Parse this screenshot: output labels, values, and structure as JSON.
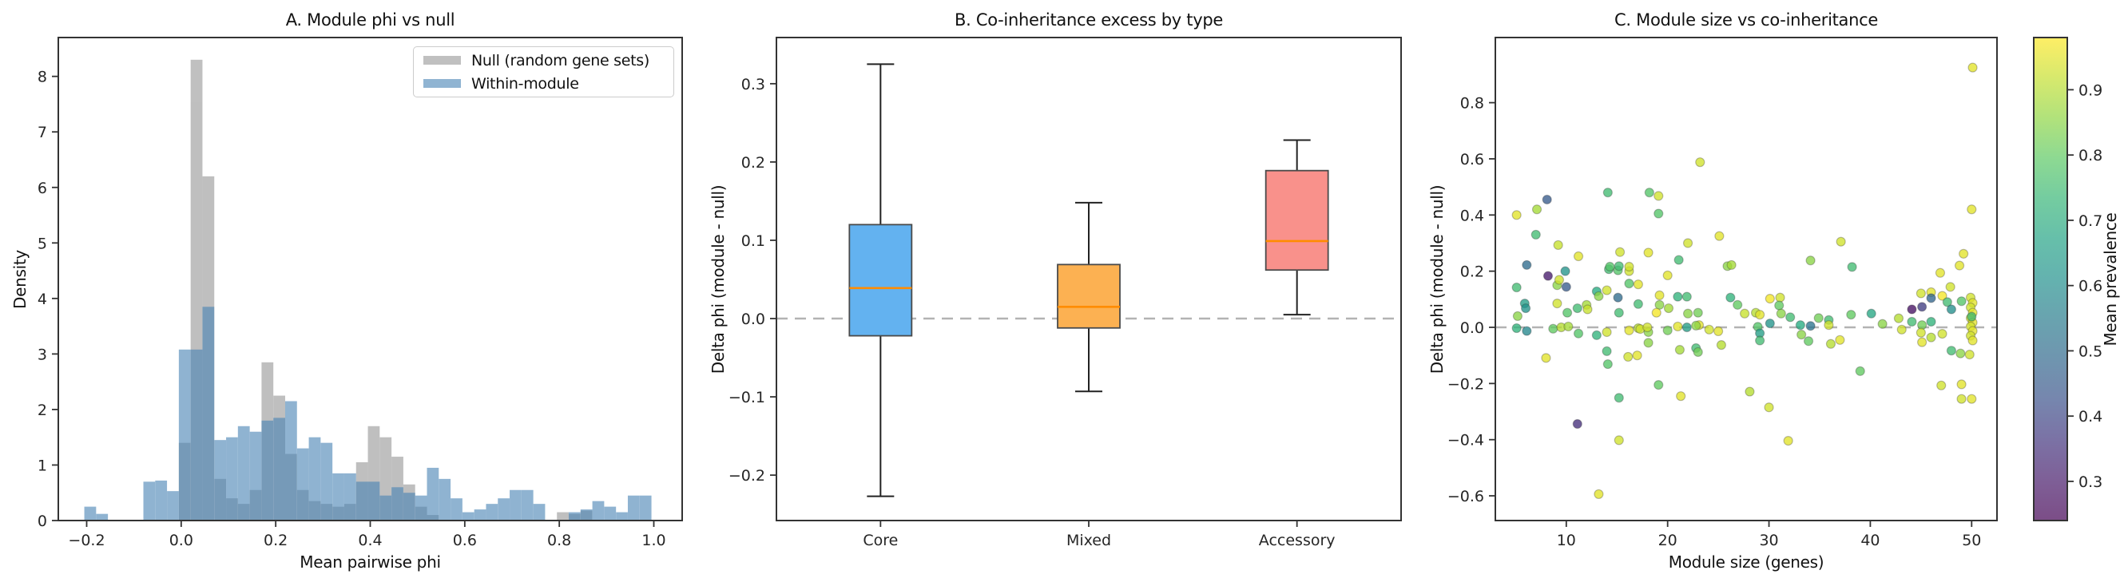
{
  "chart_data": [
    {
      "id": "A",
      "type": "histogram-overlay",
      "title": "A. Module phi vs null",
      "xlabel": "Mean pairwise phi",
      "ylabel": "Density",
      "xlim": [
        -0.26,
        1.06
      ],
      "ylim": [
        0,
        8.7
      ],
      "xticks": [
        -0.2,
        0.0,
        0.2,
        0.4,
        0.6,
        0.8,
        1.0
      ],
      "yticks": [
        0,
        1,
        2,
        3,
        4,
        5,
        6,
        7,
        8
      ],
      "bin_width": 0.025,
      "legend_position": "upper right",
      "series": [
        {
          "name": "Null (random gene sets)",
          "color": "#8c8c8c",
          "opacity": 0.55,
          "bars": [
            [
              -0.005,
              1.4
            ],
            [
              0.02,
              8.3
            ],
            [
              0.045,
              6.2
            ],
            [
              0.07,
              0.75
            ],
            [
              0.095,
              0.4
            ],
            [
              0.12,
              0.3
            ],
            [
              0.145,
              0.55
            ],
            [
              0.17,
              2.85
            ],
            [
              0.195,
              2.25
            ],
            [
              0.22,
              1.2
            ],
            [
              0.245,
              0.55
            ],
            [
              0.27,
              0.35
            ],
            [
              0.295,
              0.3
            ],
            [
              0.32,
              0.25
            ],
            [
              0.345,
              0.3
            ],
            [
              0.37,
              1.05
            ],
            [
              0.395,
              1.7
            ],
            [
              0.42,
              1.5
            ],
            [
              0.445,
              1.15
            ],
            [
              0.47,
              0.65
            ],
            [
              0.495,
              0.25
            ],
            [
              0.52,
              0.1
            ],
            [
              0.795,
              0.15
            ],
            [
              0.82,
              0.12
            ],
            [
              0.845,
              0.18
            ]
          ]
        },
        {
          "name": "Within-module",
          "color": "#4682b4",
          "opacity": 0.6,
          "bars": [
            [
              -0.205,
              0.25
            ],
            [
              -0.18,
              0.12
            ],
            [
              -0.08,
              0.7
            ],
            [
              -0.055,
              0.72
            ],
            [
              -0.03,
              0.53
            ],
            [
              -0.005,
              3.08
            ],
            [
              0.02,
              3.08
            ],
            [
              0.045,
              3.85
            ],
            [
              0.07,
              1.45
            ],
            [
              0.095,
              1.5
            ],
            [
              0.12,
              1.7
            ],
            [
              0.145,
              1.6
            ],
            [
              0.17,
              1.8
            ],
            [
              0.195,
              1.85
            ],
            [
              0.22,
              2.15
            ],
            [
              0.245,
              1.3
            ],
            [
              0.27,
              1.5
            ],
            [
              0.295,
              1.4
            ],
            [
              0.32,
              0.85
            ],
            [
              0.345,
              0.85
            ],
            [
              0.37,
              0.7
            ],
            [
              0.395,
              0.7
            ],
            [
              0.42,
              0.45
            ],
            [
              0.445,
              0.6
            ],
            [
              0.47,
              0.5
            ],
            [
              0.495,
              0.45
            ],
            [
              0.52,
              0.95
            ],
            [
              0.545,
              0.75
            ],
            [
              0.57,
              0.4
            ],
            [
              0.595,
              0.15
            ],
            [
              0.62,
              0.2
            ],
            [
              0.645,
              0.3
            ],
            [
              0.67,
              0.4
            ],
            [
              0.695,
              0.55
            ],
            [
              0.72,
              0.55
            ],
            [
              0.745,
              0.3
            ],
            [
              0.82,
              0.15
            ],
            [
              0.845,
              0.2
            ],
            [
              0.87,
              0.35
            ],
            [
              0.895,
              0.25
            ],
            [
              0.92,
              0.15
            ],
            [
              0.945,
              0.45
            ],
            [
              0.97,
              0.45
            ]
          ]
        }
      ]
    },
    {
      "id": "B",
      "type": "box",
      "title": "B. Co-inheritance excess by type",
      "ylabel": "Delta phi (module - null)",
      "categories": [
        "Core",
        "Mixed",
        "Accessory"
      ],
      "yticks": [
        -0.2,
        -0.1,
        0.0,
        0.1,
        0.2,
        0.3
      ],
      "ylim": [
        -0.258,
        0.359
      ],
      "zero_line": 0.0,
      "zero_line_color": "#b3b3b3",
      "median_color": "#ff8c00",
      "boxes": [
        {
          "label": "Core",
          "whislo": -0.227,
          "q1": -0.022,
          "med": 0.039,
          "q3": 0.12,
          "whishi": 0.325,
          "color": "#63b2f0"
        },
        {
          "label": "Mixed",
          "whislo": -0.093,
          "q1": -0.012,
          "med": 0.015,
          "q3": 0.069,
          "whishi": 0.148,
          "color": "#fcb152"
        },
        {
          "label": "Accessory",
          "whislo": 0.005,
          "q1": 0.062,
          "med": 0.099,
          "q3": 0.189,
          "whishi": 0.228,
          "color": "#f9918b"
        }
      ]
    },
    {
      "id": "C",
      "type": "scatter",
      "title": "C. Module size vs co-inheritance",
      "xlabel": "Module size (genes)",
      "ylabel": "Delta phi (module - null)",
      "xlim": [
        3.0,
        52.5
      ],
      "ylim": [
        -0.688,
        1.032
      ],
      "xticks": [
        10,
        20,
        30,
        40,
        50
      ],
      "yticks": [
        -0.6,
        -0.4,
        -0.2,
        0.0,
        0.2,
        0.4,
        0.6,
        0.8
      ],
      "zero_line": 0.0,
      "zero_line_color": "#b3b3b3",
      "colormap": "viridis",
      "marker_opacity": 0.78,
      "colorbar": {
        "label": "Mean prevalence",
        "ticks": [
          0.3,
          0.4,
          0.5,
          0.6,
          0.7,
          0.8,
          0.9
        ],
        "vmin": 0.24,
        "vmax": 0.98
      },
      "points": [
        [
          50.1,
          0.925,
          0.95
        ],
        [
          23.2,
          0.588,
          0.93
        ],
        [
          14.1,
          0.48,
          0.75
        ],
        [
          18.2,
          0.48,
          0.78
        ],
        [
          19.1,
          0.468,
          0.93
        ],
        [
          8.1,
          0.455,
          0.45
        ],
        [
          7.1,
          0.42,
          0.88
        ],
        [
          50.0,
          0.42,
          0.95
        ],
        [
          19.1,
          0.405,
          0.78
        ],
        [
          5.1,
          0.4,
          0.95
        ],
        [
          7.0,
          0.33,
          0.75
        ],
        [
          25.1,
          0.325,
          0.95
        ],
        [
          37.1,
          0.305,
          0.93
        ],
        [
          22.0,
          0.3,
          0.93
        ],
        [
          9.2,
          0.293,
          0.92
        ],
        [
          15.3,
          0.268,
          0.93
        ],
        [
          18.1,
          0.266,
          0.95
        ],
        [
          49.2,
          0.262,
          0.95
        ],
        [
          11.2,
          0.253,
          0.95
        ],
        [
          21.1,
          0.24,
          0.75
        ],
        [
          34.1,
          0.238,
          0.85
        ],
        [
          6.1,
          0.222,
          0.5
        ],
        [
          25.9,
          0.218,
          0.85
        ],
        [
          26.3,
          0.222,
          0.88
        ],
        [
          38.2,
          0.215,
          0.75
        ],
        [
          48.8,
          0.22,
          0.95
        ],
        [
          16.2,
          0.2,
          0.93
        ],
        [
          14.2,
          0.207,
          0.75
        ],
        [
          15.1,
          0.203,
          0.78
        ],
        [
          9.9,
          0.2,
          0.62
        ],
        [
          8.2,
          0.183,
          0.3
        ],
        [
          46.9,
          0.194,
          0.95
        ],
        [
          14.3,
          0.216,
          0.78
        ],
        [
          15.2,
          0.218,
          0.75
        ],
        [
          16.2,
          0.216,
          0.93
        ],
        [
          5.1,
          0.142,
          0.75
        ],
        [
          9.1,
          0.15,
          0.85
        ],
        [
          9.3,
          0.169,
          0.93
        ],
        [
          10.0,
          0.144,
          0.45
        ],
        [
          13.0,
          0.128,
          0.7
        ],
        [
          13.2,
          0.111,
          0.85
        ],
        [
          14.0,
          0.132,
          0.93
        ],
        [
          15.1,
          0.106,
          0.5
        ],
        [
          16.2,
          0.156,
          0.78
        ],
        [
          17.1,
          0.153,
          0.95
        ],
        [
          12.0,
          0.08,
          0.88
        ],
        [
          12.1,
          0.064,
          0.92
        ],
        [
          5.9,
          0.085,
          0.65
        ],
        [
          6.0,
          0.068,
          0.62
        ],
        [
          9.1,
          0.085,
          0.93
        ],
        [
          11.1,
          0.068,
          0.75
        ],
        [
          19.2,
          0.114,
          0.95
        ],
        [
          19.2,
          0.08,
          0.85
        ],
        [
          20.0,
          0.185,
          0.95
        ],
        [
          20.1,
          0.068,
          0.88
        ],
        [
          21.0,
          0.109,
          0.72
        ],
        [
          21.9,
          0.109,
          0.75
        ],
        [
          17.1,
          0.083,
          0.75
        ],
        [
          30.1,
          0.102,
          0.97
        ],
        [
          31.1,
          0.106,
          0.93
        ],
        [
          31.0,
          0.078,
          0.8
        ],
        [
          26.2,
          0.106,
          0.72
        ],
        [
          26.9,
          0.08,
          0.8
        ],
        [
          45.0,
          0.121,
          0.93
        ],
        [
          46.0,
          0.125,
          0.95
        ],
        [
          46.0,
          0.104,
          0.48
        ],
        [
          44.1,
          0.064,
          0.28
        ],
        [
          45.1,
          0.073,
          0.38
        ],
        [
          47.1,
          0.112,
          0.97
        ],
        [
          47.9,
          0.144,
          0.93
        ],
        [
          47.6,
          0.09,
          0.75
        ],
        [
          49.0,
          0.093,
          0.78
        ],
        [
          48.0,
          0.064,
          0.6
        ],
        [
          5.2,
          0.04,
          0.85
        ],
        [
          10.1,
          0.052,
          0.78
        ],
        [
          15.2,
          0.052,
          0.75
        ],
        [
          18.9,
          0.052,
          0.97
        ],
        [
          22.0,
          0.049,
          0.85
        ],
        [
          23.0,
          0.052,
          0.82
        ],
        [
          23.1,
          0.008,
          0.95
        ],
        [
          27.6,
          0.049,
          0.92
        ],
        [
          28.7,
          0.052,
          0.9
        ],
        [
          29.1,
          0.045,
          0.95
        ],
        [
          31.2,
          0.049,
          0.85
        ],
        [
          32.1,
          0.036,
          0.75
        ],
        [
          34.9,
          0.033,
          0.82
        ],
        [
          35.9,
          0.026,
          0.75
        ],
        [
          35.9,
          0.008,
          0.93
        ],
        [
          33.1,
          0.008,
          0.7
        ],
        [
          34.1,
          0.005,
          0.52
        ],
        [
          30.1,
          0.014,
          0.62
        ],
        [
          28.9,
          0.002,
          0.78
        ],
        [
          5.1,
          -0.003,
          0.72
        ],
        [
          6.1,
          -0.013,
          0.58
        ],
        [
          8.7,
          -0.005,
          0.8
        ],
        [
          9.5,
          0.0,
          0.9
        ],
        [
          10.2,
          0.003,
          0.88
        ],
        [
          11.2,
          -0.022,
          0.78
        ],
        [
          13.0,
          -0.028,
          0.72
        ],
        [
          14.0,
          -0.017,
          0.93
        ],
        [
          16.2,
          -0.011,
          0.95
        ],
        [
          17.1,
          -0.003,
          0.9
        ],
        [
          17.3,
          -0.006,
          0.93
        ],
        [
          18.1,
          -0.017,
          0.85
        ],
        [
          18.0,
          0.0,
          0.93
        ],
        [
          20.0,
          -0.011,
          0.82
        ],
        [
          21.0,
          0.003,
          0.95
        ],
        [
          21.9,
          0.0,
          0.65
        ],
        [
          22.8,
          0.006,
          0.85
        ],
        [
          24.1,
          -0.008,
          0.93
        ],
        [
          25.0,
          -0.014,
          0.95
        ],
        [
          29.1,
          -0.021,
          0.65
        ],
        [
          33.2,
          -0.026,
          0.85
        ],
        [
          40.1,
          0.049,
          0.68
        ],
        [
          41.2,
          0.012,
          0.85
        ],
        [
          42.8,
          0.032,
          0.9
        ],
        [
          43.1,
          -0.008,
          0.93
        ],
        [
          44.1,
          0.02,
          0.75
        ],
        [
          45.1,
          0.008,
          0.82
        ],
        [
          46.0,
          0.02,
          0.72
        ],
        [
          38.1,
          0.045,
          0.8
        ],
        [
          49.9,
          0.106,
          0.93
        ],
        [
          50.1,
          0.087,
          0.95
        ],
        [
          49.9,
          0.071,
          0.93
        ],
        [
          50.1,
          0.052,
          0.95
        ],
        [
          49.9,
          0.033,
          0.93
        ],
        [
          50.1,
          0.017,
          0.95
        ],
        [
          49.9,
          0.003,
          0.93
        ],
        [
          50.1,
          -0.013,
          0.95
        ],
        [
          49.9,
          -0.03,
          0.93
        ],
        [
          50.1,
          -0.047,
          0.95
        ],
        [
          50.0,
          0.038,
          0.75
        ],
        [
          29.1,
          -0.047,
          0.75
        ],
        [
          33.9,
          -0.049,
          0.8
        ],
        [
          36.1,
          -0.059,
          0.9
        ],
        [
          37.0,
          -0.045,
          0.95
        ],
        [
          45.0,
          -0.019,
          0.93
        ],
        [
          45.1,
          -0.053,
          0.95
        ],
        [
          46.0,
          -0.036,
          0.9
        ],
        [
          47.1,
          -0.023,
          0.93
        ],
        [
          48.0,
          -0.083,
          0.75
        ],
        [
          48.9,
          -0.093,
          0.85
        ],
        [
          49.8,
          -0.097,
          0.93
        ],
        [
          14.0,
          -0.085,
          0.75
        ],
        [
          14.1,
          -0.131,
          0.78
        ],
        [
          16.1,
          -0.105,
          0.93
        ],
        [
          17.0,
          -0.1,
          0.95
        ],
        [
          18.1,
          -0.055,
          0.85
        ],
        [
          21.2,
          -0.08,
          0.88
        ],
        [
          22.8,
          -0.074,
          0.75
        ],
        [
          23.0,
          -0.088,
          0.82
        ],
        [
          25.3,
          -0.063,
          0.9
        ],
        [
          8.0,
          -0.109,
          0.95
        ],
        [
          39.0,
          -0.156,
          0.8
        ],
        [
          19.1,
          -0.205,
          0.8
        ],
        [
          21.3,
          -0.245,
          0.95
        ],
        [
          15.2,
          -0.251,
          0.75
        ],
        [
          28.1,
          -0.229,
          0.9
        ],
        [
          30.0,
          -0.285,
          0.93
        ],
        [
          31.9,
          -0.404,
          0.95
        ],
        [
          15.2,
          -0.402,
          0.93
        ],
        [
          13.2,
          -0.594,
          0.95
        ],
        [
          11.1,
          -0.344,
          0.35
        ],
        [
          47.0,
          -0.207,
          0.93
        ],
        [
          49.0,
          -0.203,
          0.95
        ],
        [
          49.0,
          -0.255,
          0.93
        ],
        [
          50.0,
          -0.255,
          0.95
        ]
      ]
    }
  ]
}
